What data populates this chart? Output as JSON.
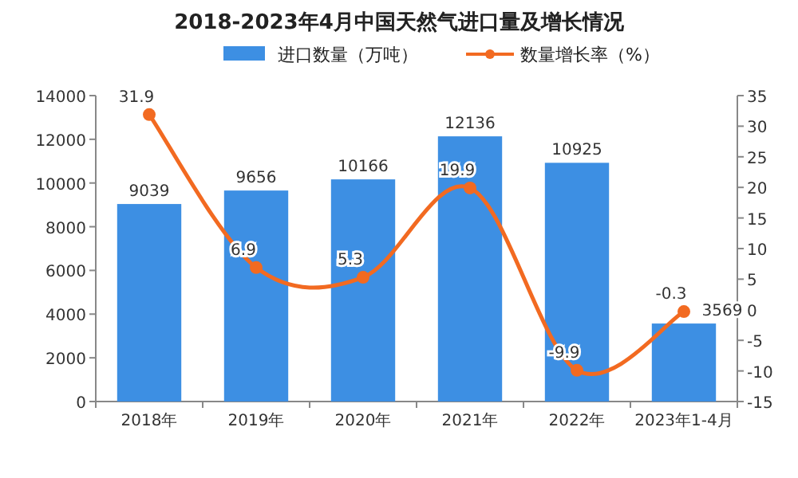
{
  "chart_data": {
    "type": "bar",
    "title": "2018-2023年4月中国天然气进口量及增长情况",
    "categories": [
      "2018年",
      "2019年",
      "2020年",
      "2021年",
      "2022年",
      "2023年1-4月"
    ],
    "series": [
      {
        "name": "进口数量（万吨）",
        "color": "#3d8fe3",
        "values": [
          9039,
          9656,
          10166,
          12136,
          10925,
          3569
        ]
      },
      {
        "name": "数量增长率（%）",
        "type": "line",
        "axis": "y2",
        "color": "#f26a21",
        "marker": "circle",
        "values": [
          31.9,
          6.9,
          5.3,
          19.9,
          -9.9,
          -0.3
        ]
      }
    ],
    "ylim": [
      0,
      14000
    ],
    "yticks": [
      0,
      2000,
      4000,
      6000,
      8000,
      10000,
      12000,
      14000
    ],
    "y2lim": [
      -15,
      35
    ],
    "y2ticks": [
      -15,
      -10,
      -5,
      0,
      5,
      10,
      15,
      20,
      25,
      30,
      35
    ],
    "data_labels": true,
    "legend": "top",
    "grid": false
  }
}
